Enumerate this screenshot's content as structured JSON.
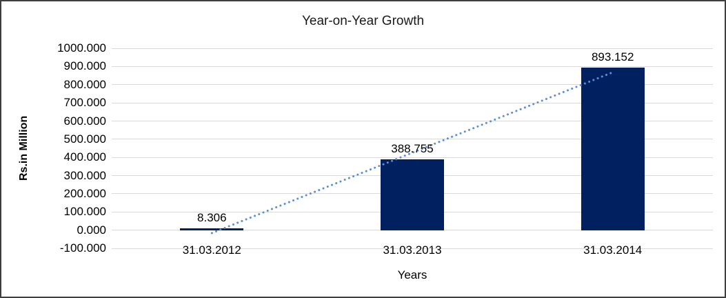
{
  "chart_data": {
    "type": "bar",
    "title": "Year-on-Year Growth",
    "xlabel": "Years",
    "ylabel": "Rs.in Million",
    "categories": [
      "31.03.2012",
      "31.03.2013",
      "31.03.2014"
    ],
    "values": [
      8.306,
      388.755,
      893.152
    ],
    "data_labels": [
      "8.306",
      "388.755",
      "893.152"
    ],
    "ylim": [
      -100,
      1000
    ],
    "ytick_step": 100,
    "ytick_decimals": 3,
    "grid": true,
    "legend": false,
    "trendline": {
      "style": "dotted",
      "start_category_index": 0,
      "end_category_index": 2,
      "start_value": -16,
      "end_value": 868
    },
    "colors": {
      "bar": "#002060",
      "trendline": "#5b8fd6",
      "gridline": "#d9d9d9",
      "text": "#000000",
      "frame_border": "#3f3f3f",
      "background": "#ffffff"
    }
  }
}
